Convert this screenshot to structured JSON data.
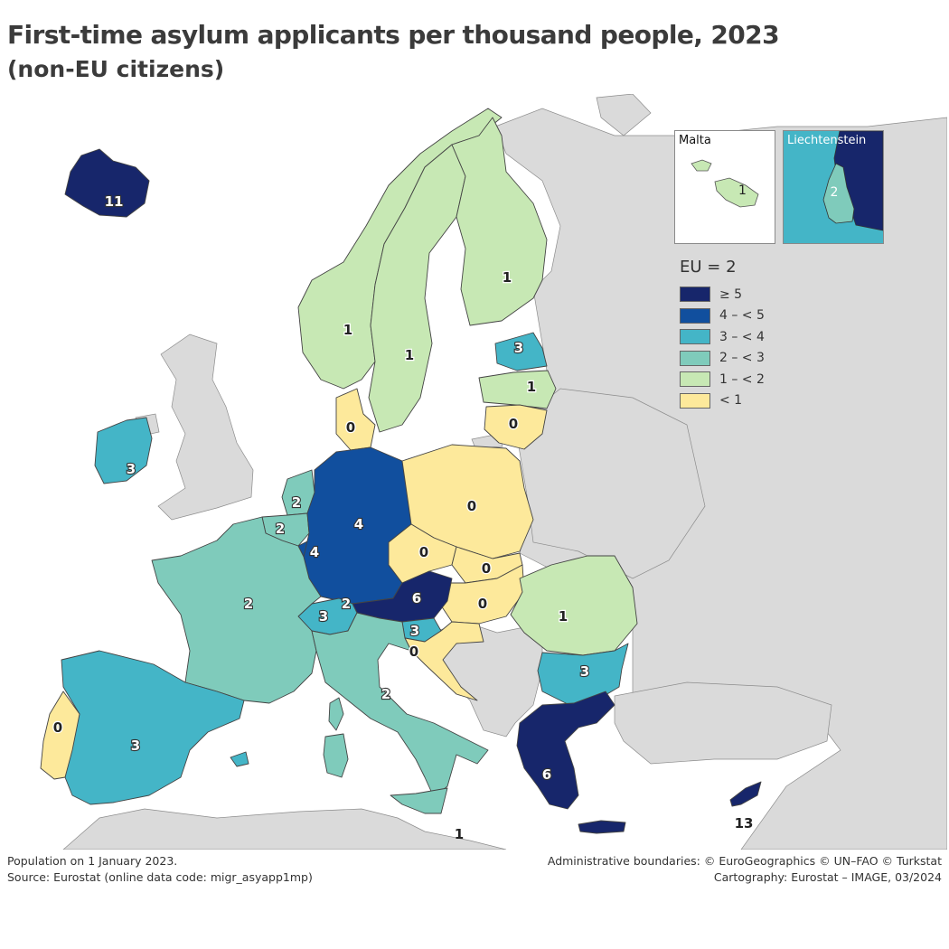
{
  "title": "First-time asylum applicants per thousand people, 2023",
  "subtitle": "(non-EU citizens)",
  "legend": {
    "title": "EU = 2",
    "classes": [
      {
        "label": "≥ 5",
        "color": "#17266b"
      },
      {
        "label": "4 – < 5",
        "color": "#114f9e"
      },
      {
        "label": "3 – < 4",
        "color": "#44b5c7"
      },
      {
        "label": "2 – < 3",
        "color": "#7fcbbb"
      },
      {
        "label": "1 – < 2",
        "color": "#c7e8b4"
      },
      {
        "label": "< 1",
        "color": "#fde99b"
      }
    ]
  },
  "colors": {
    "sea": "#ffffff",
    "non_eu_land": "#dadada",
    "border": "#555555"
  },
  "countries": {
    "iceland": "11",
    "norway": "1",
    "sweden": "1",
    "finland": "1",
    "estonia": "3",
    "latvia": "1",
    "lithuania": "0",
    "denmark": "0",
    "ireland": "3",
    "netherlands": "2",
    "belgium": "2",
    "luxembourg": "4",
    "germany": "4",
    "poland": "0",
    "czechia": "0",
    "slovakia": "0",
    "hungary": "0",
    "austria": "6",
    "switzerland": "3",
    "liechtenstein_main": "2",
    "slovenia": "3",
    "croatia": "0",
    "romania": "1",
    "bulgaria": "3",
    "greece": "6",
    "cyprus": "13",
    "france": "2",
    "italy": "2",
    "spain": "3",
    "portugal": "0",
    "malta": "1"
  },
  "insets": {
    "malta": {
      "label": "Malta",
      "value": "1"
    },
    "liechtenstein": {
      "label": "Liechtenstein",
      "value": "2"
    }
  },
  "footer": {
    "left": [
      "Population on 1 January 2023.",
      "Source: Eurostat (online data code: migr_asyapp1mp)"
    ],
    "right": [
      "Administrative boundaries: © EuroGeographics © UN–FAO © Turkstat",
      "Cartography: Eurostat – IMAGE, 03/2024"
    ]
  }
}
